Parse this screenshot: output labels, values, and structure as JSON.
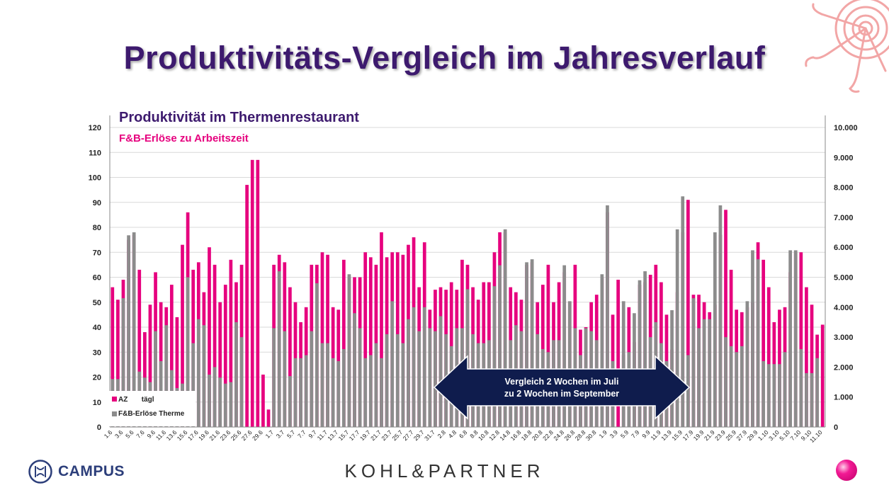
{
  "slide_title": "Produktivitäts-Vergleich im Jahresverlauf",
  "footer": {
    "campus_label": "CAMPUS",
    "partner_label": "KOHL&PARTNER"
  },
  "colors": {
    "title": "#3d1a6e",
    "pink": "#e6007e",
    "gray": "#8c8c8c",
    "arrow": "#0f1c4d"
  },
  "chart_data": {
    "type": "bar",
    "title": "Produktivität im Thermenrestaurant",
    "subtitle": "F&B-Erlöse zu Arbeitszeit",
    "ylim": [
      0,
      120
    ],
    "y_ticks": [
      0,
      10,
      20,
      30,
      40,
      50,
      60,
      70,
      80,
      90,
      100,
      110,
      120
    ],
    "y2lim": [
      0,
      10000
    ],
    "y2_ticks": [
      "0",
      "1.000",
      "2.000",
      "3.000",
      "4.000",
      "5.000",
      "6.000",
      "7.000",
      "8.000",
      "9.000",
      "10.000"
    ],
    "grid": true,
    "legend_position": "bottom-left",
    "x_tick_labels": [
      "1.6",
      "3.6",
      "5.6",
      "7.6",
      "9.6",
      "11.6",
      "13.6",
      "15.6",
      "17.6",
      "19.6",
      "21.6",
      "23.6",
      "25.6",
      "27.6",
      "29.6",
      "1.7",
      "3.7",
      "5.7",
      "7.7",
      "9.7",
      "11.7",
      "13.7",
      "15.7",
      "17.7",
      "19.7",
      "21.7",
      "23.7",
      "25.7",
      "27.7",
      "29.7",
      "31.7",
      "2.8",
      "4.8",
      "6.8",
      "8.8",
      "10.8",
      "12.8",
      "14.8",
      "16.8",
      "18.8",
      "20.8",
      "22.8",
      "24.8",
      "26.8",
      "28.8",
      "30.8",
      "1.9",
      "3.9",
      "5.9",
      "7.9",
      "9.9",
      "11.9",
      "13.9",
      "15.9",
      "17.9",
      "19.9",
      "21.9",
      "23.9",
      "25.9",
      "27.9",
      "29.9",
      "1.10",
      "3.10",
      "5.10",
      "7.10",
      "9.10",
      "11.10"
    ],
    "series": [
      {
        "name": "AZ       tägl",
        "axis": "left",
        "color": "#e6007e",
        "values": [
          56,
          51,
          59,
          75,
          77,
          63,
          38,
          49,
          62,
          50,
          48,
          57,
          44,
          73,
          86,
          63,
          66,
          54,
          72,
          65,
          50,
          57,
          67,
          58,
          65,
          97,
          107,
          107,
          21,
          7,
          65,
          69,
          66,
          56,
          50,
          42,
          48,
          65,
          65,
          70,
          69,
          48,
          47,
          67,
          60,
          60,
          60,
          70,
          68,
          65,
          78,
          68,
          70,
          70,
          69,
          73,
          76,
          56,
          74,
          47,
          55,
          56,
          55,
          58,
          55,
          67,
          65,
          56,
          51,
          58,
          58,
          70,
          78,
          78,
          56,
          54,
          51,
          65,
          66,
          50,
          57,
          65,
          50,
          58,
          62,
          50,
          65,
          39,
          40,
          50,
          53,
          60,
          86,
          45,
          59,
          29,
          48,
          34,
          57,
          58,
          61,
          65,
          58,
          45,
          31,
          54,
          78,
          91,
          53,
          53,
          50,
          46,
          49,
          77,
          87,
          63,
          47,
          46,
          48,
          50,
          74,
          67,
          56,
          42,
          47,
          48,
          62,
          70,
          70,
          56,
          49,
          37,
          41
        ]
      },
      {
        "name": "F&B-Erlöse Therme",
        "axis": "right",
        "color": "#8c8c8c",
        "values": [
          1600,
          1600,
          4300,
          6400,
          6500,
          1850,
          1650,
          1500,
          3200,
          2200,
          3400,
          1900,
          1300,
          1450,
          5000,
          2800,
          3600,
          3400,
          1750,
          2000,
          1650,
          1450,
          1500,
          3500,
          3000,
          0,
          0,
          0,
          0,
          0,
          3300,
          5200,
          3200,
          1700,
          2300,
          2300,
          2400,
          3200,
          4800,
          2800,
          2800,
          2300,
          2200,
          2600,
          5100,
          3800,
          3300,
          2300,
          2400,
          2800,
          2300,
          3100,
          4200,
          3100,
          2800,
          3600,
          4000,
          3200,
          4000,
          3300,
          3200,
          3700,
          3100,
          2700,
          3300,
          3300,
          4600,
          3100,
          2800,
          2800,
          2900,
          4700,
          5400,
          6600,
          2900,
          3400,
          3200,
          5500,
          5600,
          3100,
          2600,
          2500,
          2900,
          2900,
          5400,
          4200,
          3300,
          2400,
          3300,
          3200,
          2900,
          5100,
          7400,
          2200,
          0,
          4200,
          2500,
          3800,
          4900,
          5200,
          3000,
          3500,
          2800,
          2200,
          3900,
          6600,
          7700,
          2400,
          4300,
          3300,
          3600,
          3600,
          6500,
          7400,
          3000,
          2700,
          2500,
          2700,
          4200,
          5900,
          5600,
          2200,
          2100,
          2100,
          2100,
          2500,
          5900,
          5900,
          2600,
          1800,
          1800,
          2300
        ]
      }
    ],
    "annotation": {
      "line1": "Vergleich 2 Wochen im Juli",
      "line2": "zu 2 Wochen im September"
    }
  }
}
